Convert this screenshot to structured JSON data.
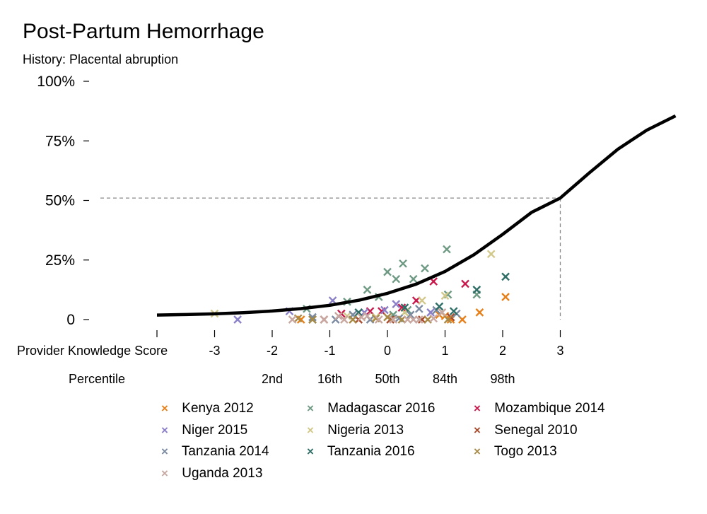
{
  "title": "Post-Partum Hemorrhage",
  "subtitle": "History: Placental abruption",
  "legend": [
    {
      "label": "Kenya 2012",
      "color": "#e8801a"
    },
    {
      "label": "Madagascar 2016",
      "color": "#6e9a84"
    },
    {
      "label": "Mozambique 2014",
      "color": "#c8174a"
    },
    {
      "label": "Niger 2015",
      "color": "#8a80c8"
    },
    {
      "label": "Nigeria 2013",
      "color": "#d2c88a"
    },
    {
      "label": "Senegal 2010",
      "color": "#a84a2c"
    },
    {
      "label": "Tanzania 2014",
      "color": "#7a8aa0"
    },
    {
      "label": "Tanzania 2016",
      "color": "#2e6e66"
    },
    {
      "label": "Togo 2013",
      "color": "#a88a46"
    },
    {
      "label": "Uganda 2013",
      "color": "#c8a8a0"
    }
  ],
  "chart_data": {
    "type": "scatter",
    "title": "Post-Partum Hemorrhage",
    "subtitle": "History: Placental abruption",
    "xlabel": "Provider Knowledge Score",
    "x_secondary_label": "Percentile",
    "xlim": [
      -4.0,
      5.1
    ],
    "ylim": [
      0,
      100
    ],
    "x_ticks": [
      {
        "value": -4,
        "label": ""
      },
      {
        "value": -3,
        "label": "-3"
      },
      {
        "value": -2,
        "label": "-2"
      },
      {
        "value": -1,
        "label": "-1"
      },
      {
        "value": 0,
        "label": "0"
      },
      {
        "value": 1,
        "label": "1"
      },
      {
        "value": 2,
        "label": "2"
      },
      {
        "value": 3,
        "label": "3"
      }
    ],
    "percentile_ticks": [
      {
        "value": -2,
        "label": "2nd"
      },
      {
        "value": -1,
        "label": "16th"
      },
      {
        "value": 0,
        "label": "50th"
      },
      {
        "value": 1,
        "label": "84th"
      },
      {
        "value": 2,
        "label": "98th"
      }
    ],
    "y_ticks": [
      {
        "value": 0,
        "label": "0"
      },
      {
        "value": 25,
        "label": "25%"
      },
      {
        "value": 50,
        "label": "50%"
      },
      {
        "value": 75,
        "label": "75%"
      },
      {
        "value": 100,
        "label": "100%"
      }
    ],
    "grid": false,
    "legend_position": "bottom",
    "curve": {
      "x": [
        -4.0,
        -3.5,
        -3.0,
        -2.5,
        -2.0,
        -1.5,
        -1.0,
        -0.5,
        0.0,
        0.5,
        1.0,
        1.5,
        2.0,
        2.5,
        3.0,
        3.5,
        4.0,
        4.5,
        5.0
      ],
      "y": [
        1.9,
        2.1,
        2.4,
        2.9,
        3.6,
        4.6,
        6.0,
        8.1,
        11.0,
        14.9,
        20.2,
        27.2,
        35.8,
        45.0,
        51.0,
        61.5,
        71.5,
        79.5,
        85.5
      ]
    },
    "reference": {
      "x": 3.0,
      "y": 51.0
    },
    "series": [
      {
        "name": "Kenya 2012",
        "points": [
          [
            -1.5,
            0
          ],
          [
            1.0,
            1.5
          ],
          [
            1.3,
            0
          ],
          [
            1.6,
            3
          ],
          [
            2.05,
            9.5
          ],
          [
            0.9,
            2
          ],
          [
            1.1,
            0
          ]
        ]
      },
      {
        "name": "Madagascar 2016",
        "points": [
          [
            -0.7,
            7.5
          ],
          [
            -0.35,
            12.5
          ],
          [
            -0.15,
            9.5
          ],
          [
            0,
            20
          ],
          [
            0.15,
            17
          ],
          [
            0.27,
            23.5
          ],
          [
            0.45,
            17
          ],
          [
            0.65,
            21.5
          ],
          [
            1.03,
            29.5
          ],
          [
            1.05,
            10.5
          ],
          [
            1.55,
            10.5
          ],
          [
            0.35,
            4
          ],
          [
            0.1,
            2
          ],
          [
            -1.4,
            4.5
          ]
        ]
      },
      {
        "name": "Mozambique 2014",
        "points": [
          [
            0.8,
            16
          ],
          [
            1.35,
            15
          ],
          [
            0.5,
            8
          ],
          [
            -0.8,
            2.5
          ],
          [
            -0.3,
            3.5
          ],
          [
            0.25,
            5
          ],
          [
            -0.1,
            3.5
          ]
        ]
      },
      {
        "name": "Niger 2015",
        "points": [
          [
            -2.6,
            0
          ],
          [
            -1.7,
            3.5
          ],
          [
            -0.95,
            8
          ],
          [
            0.15,
            6.5
          ],
          [
            -0.4,
            3
          ],
          [
            -0.05,
            4
          ],
          [
            0.75,
            3
          ]
        ]
      },
      {
        "name": "Nigeria 2013",
        "points": [
          [
            -3,
            2.5
          ],
          [
            1.8,
            27.5
          ],
          [
            1.0,
            10
          ],
          [
            0.6,
            8
          ],
          [
            -0.7,
            1.5
          ],
          [
            0.3,
            3
          ],
          [
            -0.2,
            1
          ]
        ]
      },
      {
        "name": "Senegal 2010",
        "points": [
          [
            -1.1,
            0
          ],
          [
            -0.5,
            0
          ],
          [
            0.05,
            0
          ],
          [
            0.6,
            0
          ],
          [
            1.1,
            1
          ]
        ]
      },
      {
        "name": "Tanzania 2014",
        "points": [
          [
            -1.3,
            1
          ],
          [
            -0.9,
            0
          ],
          [
            -0.6,
            2
          ],
          [
            -0.3,
            0
          ],
          [
            0.2,
            0.5
          ],
          [
            0.4,
            2
          ],
          [
            0.55,
            4.5
          ],
          [
            0.85,
            4
          ],
          [
            1.2,
            2.5
          ]
        ]
      },
      {
        "name": "Tanzania 2016",
        "points": [
          [
            2.05,
            18
          ],
          [
            1.55,
            12.5
          ],
          [
            1.15,
            3.5
          ],
          [
            0.9,
            5.5
          ],
          [
            0.3,
            5
          ],
          [
            -0.5,
            3
          ],
          [
            -1.3,
            0
          ]
        ]
      },
      {
        "name": "Togo 2013",
        "points": [
          [
            -1.55,
            0.5
          ],
          [
            -1.3,
            0
          ],
          [
            -0.6,
            0
          ],
          [
            -0.2,
            0.5
          ],
          [
            0.25,
            0
          ],
          [
            0.7,
            0
          ],
          [
            1.05,
            0
          ],
          [
            0.0,
            1
          ]
        ]
      },
      {
        "name": "Uganda 2013",
        "points": [
          [
            -1.65,
            0
          ],
          [
            -1.1,
            0
          ],
          [
            -0.75,
            0
          ],
          [
            -0.45,
            1
          ],
          [
            -0.15,
            0
          ],
          [
            0.1,
            0
          ],
          [
            0.35,
            0
          ],
          [
            0.55,
            0
          ],
          [
            0.8,
            0.5
          ],
          [
            0.95,
            3
          ],
          [
            -0.85,
            1.5
          ],
          [
            -0.35,
            1.5
          ],
          [
            0.45,
            0
          ]
        ]
      }
    ]
  }
}
